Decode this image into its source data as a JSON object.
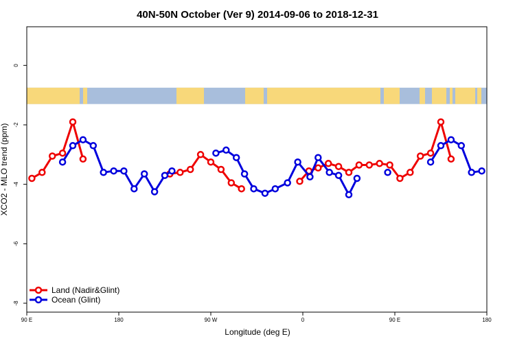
{
  "chart_data": {
    "type": "line",
    "title": "40N-50N October (Ver 9)   2014-09-06 to 2018-12-31",
    "xlabel": "Longitude (deg E)",
    "ylabel": "XCO2 - MLO trend (ppm)",
    "xlim": [
      90,
      540
    ],
    "ylim": [
      -8.3,
      1.3
    ],
    "x_ticks": [
      {
        "value": 90,
        "label": "90 E"
      },
      {
        "value": 180,
        "label": "180"
      },
      {
        "value": 270,
        "label": "90 W"
      },
      {
        "value": 360,
        "label": "0"
      },
      {
        "value": 450,
        "label": "90 E"
      },
      {
        "value": 540,
        "label": "180"
      }
    ],
    "y_ticks": [
      {
        "value": 0,
        "label": "0"
      },
      {
        "value": -2,
        "label": "-2"
      },
      {
        "value": -4,
        "label": "-4"
      },
      {
        "value": -6,
        "label": "-6"
      },
      {
        "value": -8,
        "label": "-8"
      }
    ],
    "land_bar": {
      "y_top": -0.75,
      "y_bottom": -1.3,
      "ocean_color": "#a8bedc",
      "land_color": "#f8d87a"
    },
    "legend_position": "bottom-left",
    "series": [
      {
        "name": "Land (Nadir&Glint)",
        "color": "#ee0000",
        "segments": [
          [
            [
              95,
              -3.8
            ],
            [
              105,
              -3.6
            ],
            [
              115,
              -3.05
            ],
            [
              125,
              -2.95
            ],
            [
              135,
              -1.9
            ],
            [
              145,
              -3.15
            ]
          ],
          [
            [
              230,
              -3.65
            ],
            [
              240,
              -3.6
            ],
            [
              250,
              -3.5
            ],
            [
              260,
              -3.0
            ],
            [
              270,
              -3.25
            ],
            [
              280,
              -3.5
            ],
            [
              290,
              -3.95
            ],
            [
              300,
              -4.15
            ]
          ],
          [
            [
              357,
              -3.9
            ],
            [
              366,
              -3.55
            ],
            [
              375,
              -3.45
            ],
            [
              385,
              -3.3
            ],
            [
              395,
              -3.4
            ],
            [
              405,
              -3.6
            ],
            [
              415,
              -3.35
            ],
            [
              425,
              -3.35
            ],
            [
              435,
              -3.3
            ],
            [
              445,
              -3.35
            ],
            [
              455,
              -3.8
            ],
            [
              465,
              -3.6
            ],
            [
              475,
              -3.05
            ],
            [
              485,
              -2.95
            ],
            [
              495,
              -1.9
            ],
            [
              505,
              -3.15
            ]
          ]
        ]
      },
      {
        "name": "Ocean (Glint)",
        "color": "#0000dd",
        "segments": [
          [
            [
              125,
              -3.25
            ],
            [
              135,
              -2.7
            ],
            [
              145,
              -2.5
            ],
            [
              155,
              -2.7
            ],
            [
              165,
              -3.6
            ],
            [
              175,
              -3.55
            ],
            [
              185,
              -3.55
            ],
            [
              195,
              -4.15
            ],
            [
              205,
              -3.65
            ],
            [
              215,
              -4.25
            ],
            [
              225,
              -3.7
            ],
            [
              232,
              -3.55
            ]
          ],
          [
            [
              275,
              -2.95
            ],
            [
              285,
              -2.85
            ],
            [
              295,
              -3.1
            ],
            [
              303,
              -3.65
            ],
            [
              312,
              -4.15
            ],
            [
              323,
              -4.3
            ],
            [
              333,
              -4.15
            ],
            [
              345,
              -3.95
            ],
            [
              355,
              -3.25
            ],
            [
              367,
              -3.75
            ],
            [
              375,
              -3.1
            ],
            [
              386,
              -3.6
            ],
            [
              395,
              -3.7
            ],
            [
              405,
              -4.35
            ],
            [
              413,
              -3.8
            ]
          ],
          [
            [
              443,
              -3.6
            ]
          ],
          [
            [
              485,
              -3.25
            ],
            [
              495,
              -2.7
            ],
            [
              505,
              -2.5
            ],
            [
              515,
              -2.7
            ],
            [
              525,
              -3.6
            ],
            [
              535,
              -3.55
            ]
          ]
        ]
      }
    ]
  }
}
